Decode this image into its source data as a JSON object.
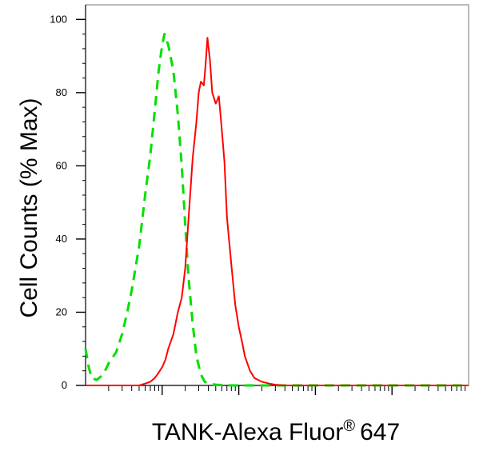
{
  "chart_data": {
    "type": "line",
    "title": "",
    "xlabel": "TANK-Alexa Fluor",
    "xlabel_superscript": "®",
    "xlabel_suffix": "647",
    "ylabel": "Cell Counts (% Max)",
    "x_scale": "log",
    "xlim": [
      0.1,
      10000
    ],
    "ylim": [
      0,
      104
    ],
    "y_ticks": [
      0,
      20,
      40,
      60,
      80,
      100
    ],
    "y_tick_labels": [
      "0",
      "20",
      "40",
      "60",
      "80",
      "100"
    ],
    "grid": false,
    "legend": "none",
    "series": [
      {
        "color": "#00e000",
        "style": "dashed",
        "x": [
          0.1,
          0.11,
          0.12,
          0.14,
          0.17,
          0.2,
          0.25,
          0.3,
          0.35,
          0.4,
          0.5,
          0.6,
          0.7,
          0.8,
          0.9,
          1.0,
          1.07,
          1.2,
          1.4,
          1.6,
          1.8,
          2.0,
          2.2,
          2.5,
          2.8,
          3.2,
          3.6,
          4.0,
          4.5,
          5.0,
          6.0,
          8.0,
          20,
          100,
          1000,
          10000
        ],
        "y": [
          10,
          5,
          2,
          1.5,
          3,
          6,
          9,
          14,
          20,
          26,
          38,
          52,
          63,
          75,
          86,
          93,
          96,
          93,
          86,
          74,
          60,
          44,
          30,
          17,
          8,
          3,
          1,
          0.5,
          0.3,
          0.2,
          0.1,
          0,
          0,
          0,
          0,
          0
        ]
      },
      {
        "color": "#ff0000",
        "style": "solid",
        "x": [
          0.1,
          0.5,
          0.6,
          0.7,
          0.8,
          0.9,
          1.0,
          1.1,
          1.2,
          1.4,
          1.6,
          1.8,
          2.0,
          2.2,
          2.5,
          2.8,
          3.0,
          3.2,
          3.5,
          3.7,
          3.9,
          4.2,
          4.5,
          5.0,
          5.5,
          6.0,
          6.5,
          7.0,
          8.0,
          9.0,
          10.0,
          11.0,
          12.0,
          14.0,
          16.0,
          20.0,
          25.0,
          30.0,
          40.0,
          100,
          1000,
          10000
        ],
        "y": [
          0,
          0,
          0.5,
          1,
          2,
          3.5,
          5,
          7,
          10,
          14,
          20,
          24,
          32,
          45,
          62,
          72,
          80,
          83,
          82,
          88,
          95,
          89,
          80,
          77,
          79,
          70,
          61,
          46,
          33,
          22,
          16,
          12,
          8,
          4,
          2,
          1,
          0.5,
          0.2,
          0,
          0,
          0,
          0
        ]
      }
    ]
  }
}
